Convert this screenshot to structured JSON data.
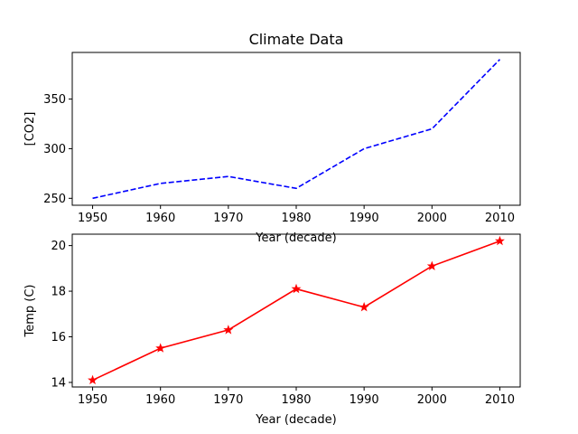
{
  "chart_data": [
    {
      "type": "line",
      "title": "Climate Data",
      "xlabel": "Year (decade)",
      "ylabel": "[CO2]",
      "x": [
        1950,
        1960,
        1970,
        1980,
        1990,
        2000,
        2010
      ],
      "xlim": [
        1947,
        2013
      ],
      "ylim": [
        243,
        397
      ],
      "xticks": [
        1950,
        1960,
        1970,
        1980,
        1990,
        2000,
        2010
      ],
      "yticks": [
        250,
        300,
        350
      ],
      "grid": false,
      "series": [
        {
          "values": [
            250,
            265,
            272,
            260,
            300,
            320,
            390
          ],
          "color": "#0000ff",
          "linestyle": "dashed",
          "marker": "none"
        }
      ]
    },
    {
      "type": "line",
      "title": "",
      "xlabel": "Year (decade)",
      "ylabel": "Temp (C)",
      "x": [
        1950,
        1960,
        1970,
        1980,
        1990,
        2000,
        2010
      ],
      "xlim": [
        1947,
        2013
      ],
      "ylim": [
        13.8,
        20.5
      ],
      "xticks": [
        1950,
        1960,
        1970,
        1980,
        1990,
        2000,
        2010
      ],
      "yticks": [
        14,
        16,
        18,
        20
      ],
      "grid": false,
      "series": [
        {
          "values": [
            14.1,
            15.5,
            16.3,
            18.1,
            17.3,
            19.1,
            20.2
          ],
          "color": "#ff0000",
          "linestyle": "solid",
          "marker": "star"
        }
      ]
    }
  ]
}
